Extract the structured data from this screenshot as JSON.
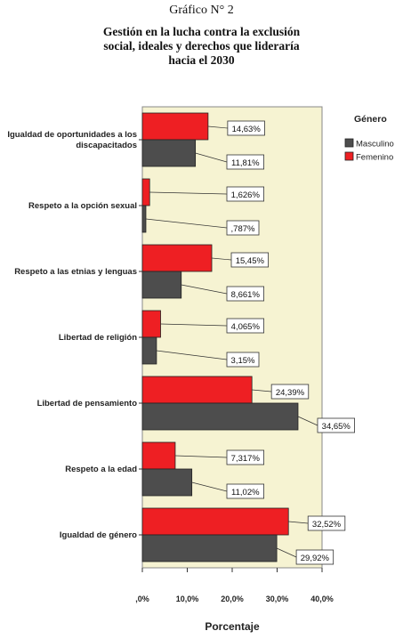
{
  "caption": "Gráfico N° 2",
  "title_lines": [
    "Gestión en la lucha contra la exclusión",
    "social, ideales y derechos que lideraría",
    "hacia el 2030"
  ],
  "colors": {
    "masculino": "#4d4d4d",
    "femenino": "#ee1f23",
    "plot_background": "#f6f3d2"
  },
  "chart_data": {
    "type": "bar",
    "orientation": "horizontal",
    "categories": [
      [
        "Igualdad de oportunidades a los",
        "discapacitados"
      ],
      [
        "Respeto a la opción sexual"
      ],
      [
        "Respeto a las etnias y lenguas"
      ],
      [
        "Libertad de religión"
      ],
      [
        "Libertad de pensamiento"
      ],
      [
        "Respeto a la edad"
      ],
      [
        "Igualdad de género"
      ]
    ],
    "series": [
      {
        "name": "Femenino",
        "values": [
          14.63,
          1.626,
          15.45,
          4.065,
          24.39,
          7.317,
          32.52
        ],
        "labels": [
          "14,63%",
          "1,626%",
          "15,45%",
          "4,065%",
          "24,39%",
          "7,317%",
          "32,52%"
        ]
      },
      {
        "name": "Masculino",
        "values": [
          11.81,
          0.787,
          8.661,
          3.15,
          34.65,
          11.02,
          29.92
        ],
        "labels": [
          "11,81%",
          ",787%",
          "8,661%",
          "3,15%",
          "34,65%",
          "11,02%",
          "29,92%"
        ]
      }
    ],
    "xlim": [
      0,
      40
    ],
    "xticks": [
      0,
      10,
      20,
      30,
      40
    ],
    "xtick_labels": [
      ",0%",
      "10,0%",
      "20,0%",
      "30,0%",
      "40,0%"
    ],
    "xlabel": "Porcentaje",
    "ylabel": "",
    "legend": {
      "title": "Género",
      "placement": "top-right",
      "entries": [
        "Masculino",
        "Femenino"
      ]
    },
    "grid": false
  }
}
